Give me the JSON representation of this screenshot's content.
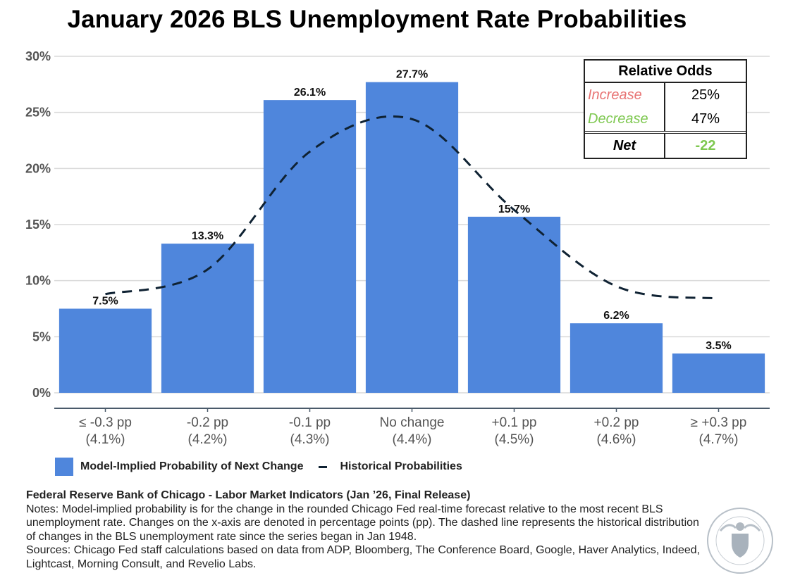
{
  "chart_data": {
    "type": "bar",
    "title": "January 2026 BLS Unemployment Rate Probabilities",
    "xlabel": "",
    "ylabel": "",
    "ylim": [
      0,
      30
    ],
    "yticks": [
      "0%",
      "5%",
      "10%",
      "15%",
      "20%",
      "25%",
      "30%"
    ],
    "ytick_values": [
      0,
      5,
      10,
      15,
      20,
      25,
      30
    ],
    "grid": true,
    "categories": [
      {
        "line1": "≤ -0.3 pp",
        "line2": "(4.1%)"
      },
      {
        "line1": "-0.2 pp",
        "line2": "(4.2%)"
      },
      {
        "line1": "-0.1 pp",
        "line2": "(4.3%)"
      },
      {
        "line1": "No change",
        "line2": "(4.4%)"
      },
      {
        "line1": "+0.1 pp",
        "line2": "(4.5%)"
      },
      {
        "line1": "+0.2 pp",
        "line2": "(4.6%)"
      },
      {
        "line1": "≥ +0.3 pp",
        "line2": "(4.7%)"
      }
    ],
    "series": [
      {
        "name": "Model-Implied Probability of Next Change",
        "type": "bar",
        "color": "#4f86dc",
        "values": [
          7.5,
          13.3,
          26.1,
          27.7,
          15.7,
          6.2,
          3.5
        ],
        "labels": [
          "7.5%",
          "13.3%",
          "26.1%",
          "27.7%",
          "15.7%",
          "6.2%",
          "3.5%"
        ]
      },
      {
        "name": "Historical Probabilities",
        "type": "line",
        "style": "dashed",
        "color": "#0f2233",
        "values": [
          8.8,
          11.0,
          21.5,
          24.4,
          16.3,
          9.5,
          8.4
        ]
      }
    ],
    "legend_position": "bottom-left"
  },
  "odds_table": {
    "title": "Relative Odds",
    "rows": [
      {
        "label": "Increase",
        "value": "25%",
        "color": "#e87373"
      },
      {
        "label": "Decrease",
        "value": "47%",
        "color": "#7ec850"
      }
    ],
    "net": {
      "label": "Net",
      "value": "-22",
      "color": "#7ec850"
    }
  },
  "legend": {
    "bar_label": "Model-Implied Probability of Next Change",
    "line_label": "Historical Probabilities"
  },
  "footer": {
    "source": "Federal Reserve Bank of Chicago - Labor Market Indicators (Jan ’26, Final Release)",
    "notes": "Notes: Model-implied probability is for the change in the rounded Chicago Fed real-time forecast relative to the most recent BLS unemployment rate. Changes on the x-axis are denoted in percentage points (pp). The dashed line represents the historical distribution of changes in the BLS unemployment rate since the series began in Jan 1948.",
    "sources": "Sources: Chicago Fed staff calculations based on data from ADP, Bloomberg, The Conference Board, Google, Haver Analytics, Indeed, Lightcast, Morning Consult, and Revelio Labs.",
    "seal_icon": "federal-reserve-seal-icon"
  }
}
